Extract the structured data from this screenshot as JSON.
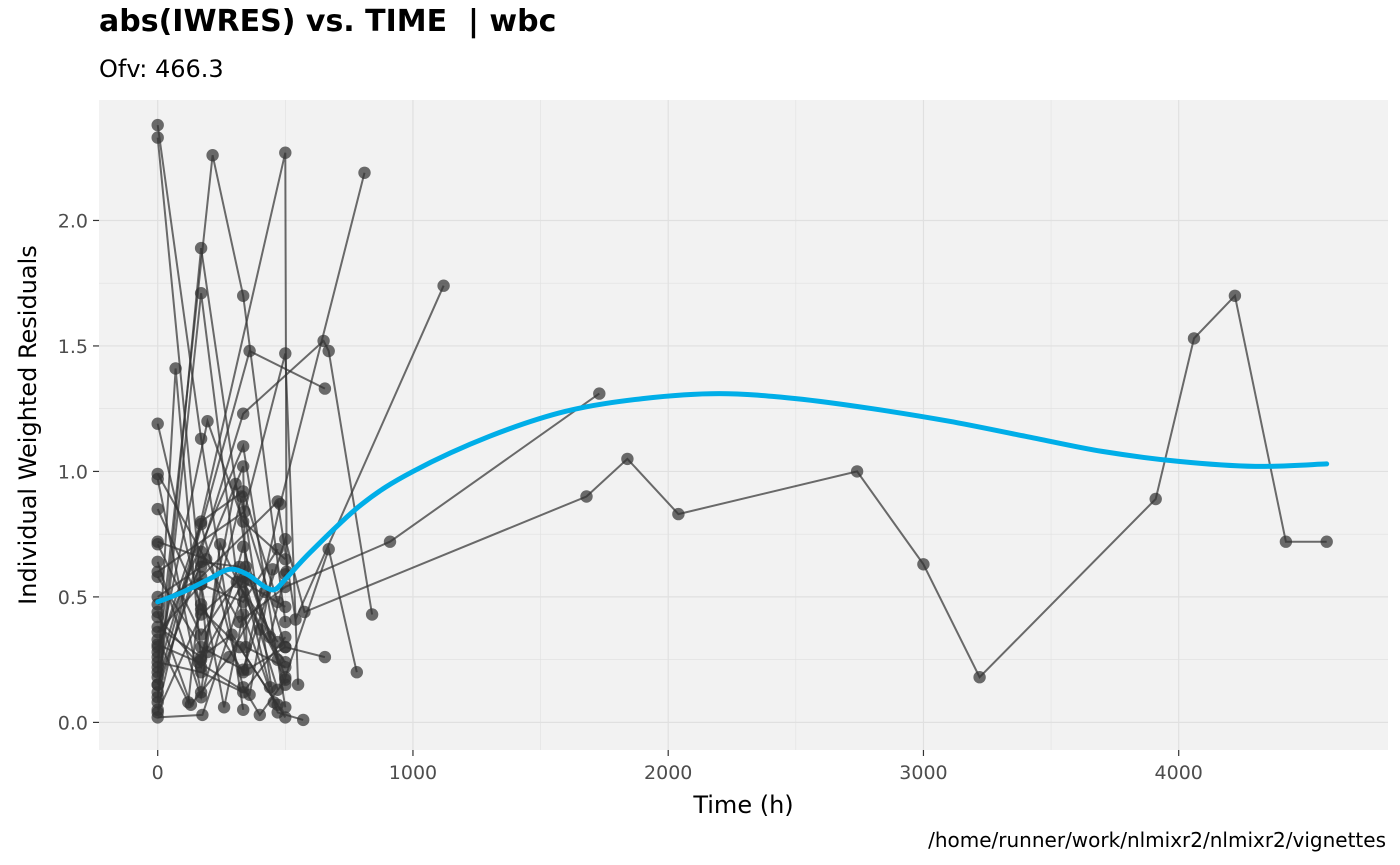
{
  "chart_data": {
    "type": "scatter",
    "title": "abs(IWRES) vs. TIME  | wbc",
    "subtitle": "Ofv: 466.3",
    "xlabel": "Time (h)",
    "ylabel": "Individual Weighted Residuals",
    "caption": "/home/runner/work/nlmixr2/nlmixr2/vignettes",
    "xlim": [
      -230,
      4820
    ],
    "ylim": [
      -0.11,
      2.48
    ],
    "xticks": [
      0,
      1000,
      2000,
      3000,
      4000
    ],
    "xtick_labels": [
      "0",
      "1000",
      "2000",
      "3000",
      "4000"
    ],
    "yticks": [
      0,
      0.5,
      1,
      1.5,
      2
    ],
    "ytick_labels": [
      "0.0",
      "0.5",
      "1.0",
      "1.5",
      "2.0"
    ],
    "grid": true,
    "colors": {
      "panel": "#f2f2f2",
      "grid": "#e0e0e0",
      "points": "#333333",
      "lines": "#333333",
      "smooth": "#00aee8"
    },
    "individual_lines": [
      [
        [
          0,
          2.38
        ],
        [
          170,
          1.13
        ],
        [
          335,
          0.05
        ]
      ],
      [
        [
          0,
          2.33
        ],
        [
          195,
          0.28
        ],
        [
          290,
          0.35
        ],
        [
          500,
          0.02
        ]
      ],
      [
        [
          0,
          0.22
        ],
        [
          215,
          2.26
        ],
        [
          335,
          1.7
        ],
        [
          500,
          0.4
        ]
      ],
      [
        [
          0,
          0.1
        ],
        [
          170,
          1.89
        ],
        [
          360,
          0.57
        ],
        [
          500,
          0.15
        ]
      ],
      [
        [
          0,
          0.05
        ],
        [
          500,
          2.27
        ],
        [
          505,
          0.6
        ]
      ],
      [
        [
          0,
          0.08
        ],
        [
          170,
          1.71
        ],
        [
          345,
          0.3
        ],
        [
          500,
          0.22
        ]
      ],
      [
        [
          0,
          0.18
        ],
        [
          70,
          1.41
        ],
        [
          170,
          0.25
        ],
        [
          335,
          0.56
        ],
        [
          500,
          0.46
        ]
      ],
      [
        [
          0,
          0.15
        ],
        [
          360,
          1.48
        ],
        [
          655,
          1.33
        ]
      ],
      [
        [
          0,
          0.12
        ],
        [
          335,
          1.23
        ],
        [
          650,
          1.52
        ],
        [
          670,
          1.48
        ],
        [
          840,
          0.43
        ]
      ],
      [
        [
          0,
          0.26
        ],
        [
          195,
          1.2
        ],
        [
          335,
          0.8
        ],
        [
          500,
          0.65
        ]
      ],
      [
        [
          0,
          0.3
        ],
        [
          335,
          1.1
        ],
        [
          500,
          0.06
        ]
      ],
      [
        [
          0,
          0.5
        ],
        [
          170,
          0.62
        ],
        [
          335,
          1.02
        ],
        [
          350,
          0.21
        ],
        [
          500,
          0.3
        ]
      ],
      [
        [
          0,
          0.6
        ],
        [
          340,
          0.84
        ],
        [
          500,
          1.47
        ],
        [
          550,
          0.15
        ]
      ],
      [
        [
          0,
          0.85
        ],
        [
          170,
          0.47
        ],
        [
          335,
          0.2
        ],
        [
          480,
          0.87
        ],
        [
          810,
          2.19
        ]
      ],
      [
        [
          0,
          0.42
        ],
        [
          170,
          0.22
        ],
        [
          305,
          0.95
        ],
        [
          500,
          0.3
        ],
        [
          655,
          0.26
        ]
      ],
      [
        [
          0,
          0.47
        ],
        [
          170,
          0.58
        ],
        [
          470,
          0.88
        ],
        [
          540,
          0.41
        ],
        [
          1120,
          1.74
        ]
      ],
      [
        [
          0,
          0.99
        ],
        [
          170,
          0.68
        ],
        [
          320,
          0.4
        ],
        [
          500,
          0.54
        ],
        [
          910,
          0.72
        ],
        [
          1730,
          1.31
        ]
      ],
      [
        [
          0,
          0.71
        ],
        [
          170,
          0.35
        ],
        [
          345,
          0.62
        ],
        [
          500,
          0.18
        ],
        [
          670,
          0.69
        ],
        [
          780,
          0.2
        ]
      ],
      [
        [
          0,
          0.58
        ],
        [
          170,
          0.3
        ],
        [
          335,
          0.21
        ],
        [
          500,
          0.73
        ],
        [
          575,
          0.44
        ],
        [
          1680,
          0.9
        ],
        [
          1840,
          1.05
        ],
        [
          2040,
          0.83
        ],
        [
          2740,
          1.0
        ],
        [
          3000,
          0.63
        ],
        [
          3220,
          0.18
        ],
        [
          3910,
          0.89
        ],
        [
          4060,
          1.53
        ],
        [
          4220,
          1.7
        ],
        [
          4420,
          0.72
        ],
        [
          4580,
          0.72
        ]
      ],
      [
        [
          0,
          0.33
        ],
        [
          120,
          0.08
        ],
        [
          170,
          0.55
        ],
        [
          260,
          0.06
        ],
        [
          335,
          0.43
        ],
        [
          470,
          0.04
        ],
        [
          570,
          0.01
        ]
      ],
      [
        [
          0,
          0.2
        ],
        [
          170,
          0.79
        ],
        [
          335,
          0.14
        ],
        [
          400,
          0.03
        ],
        [
          500,
          0.17
        ]
      ],
      [
        [
          0,
          0.64
        ],
        [
          170,
          0.1
        ],
        [
          335,
          0.7
        ],
        [
          440,
          0.34
        ],
        [
          500,
          0.59
        ]
      ],
      [
        [
          0,
          0.04
        ],
        [
          170,
          0.43
        ],
        [
          335,
          0.58
        ],
        [
          470,
          0.13
        ]
      ],
      [
        [
          0,
          0.02
        ],
        [
          175,
          0.03
        ],
        [
          335,
          0.52
        ],
        [
          470,
          0.25
        ]
      ],
      [
        [
          0,
          0.38
        ],
        [
          170,
          0.26
        ],
        [
          330,
          0.9
        ],
        [
          455,
          0.08
        ]
      ],
      [
        [
          0,
          0.15
        ],
        [
          170,
          0.64
        ],
        [
          320,
          0.62
        ],
        [
          440,
          0.14
        ]
      ],
      [
        [
          0,
          1.19
        ],
        [
          170,
          0.45
        ],
        [
          320,
          0.3
        ],
        [
          470,
          0.07
        ]
      ],
      [
        [
          0,
          0.97
        ],
        [
          170,
          0.12
        ],
        [
          245,
          0.71
        ],
        [
          400,
          0.37
        ],
        [
          500,
          0.24
        ]
      ],
      [
        [
          0,
          0.28
        ],
        [
          170,
          0.8
        ],
        [
          335,
          0.92
        ],
        [
          470,
          0.48
        ]
      ],
      [
        [
          0,
          0.36
        ],
        [
          170,
          0.55
        ],
        [
          335,
          0.48
        ],
        [
          470,
          0.69
        ]
      ],
      [
        [
          0,
          0.24
        ],
        [
          170,
          0.2
        ],
        [
          335,
          0.12
        ],
        [
          500,
          0.34
        ]
      ],
      [
        [
          0,
          0.44
        ],
        [
          130,
          0.07
        ],
        [
          280,
          0.26
        ],
        [
          420,
          0.52
        ]
      ],
      [
        [
          0,
          0.72
        ],
        [
          190,
          0.65
        ],
        [
          310,
          0.56
        ],
        [
          470,
          0.32
        ]
      ],
      [
        [
          0,
          0.31
        ],
        [
          160,
          0.24
        ],
        [
          360,
          0.11
        ],
        [
          450,
          0.61
        ]
      ]
    ],
    "smooth_line": {
      "x": [
        0,
        100,
        200,
        280,
        350,
        420,
        460,
        500,
        600,
        800,
        1000,
        1300,
        1600,
        1900,
        2200,
        2500,
        2800,
        3100,
        3400,
        3700,
        4000,
        4300,
        4580
      ],
      "y": [
        0.48,
        0.52,
        0.57,
        0.61,
        0.59,
        0.54,
        0.53,
        0.57,
        0.68,
        0.87,
        1.0,
        1.14,
        1.24,
        1.29,
        1.31,
        1.29,
        1.25,
        1.2,
        1.14,
        1.08,
        1.04,
        1.02,
        1.03
      ]
    }
  }
}
